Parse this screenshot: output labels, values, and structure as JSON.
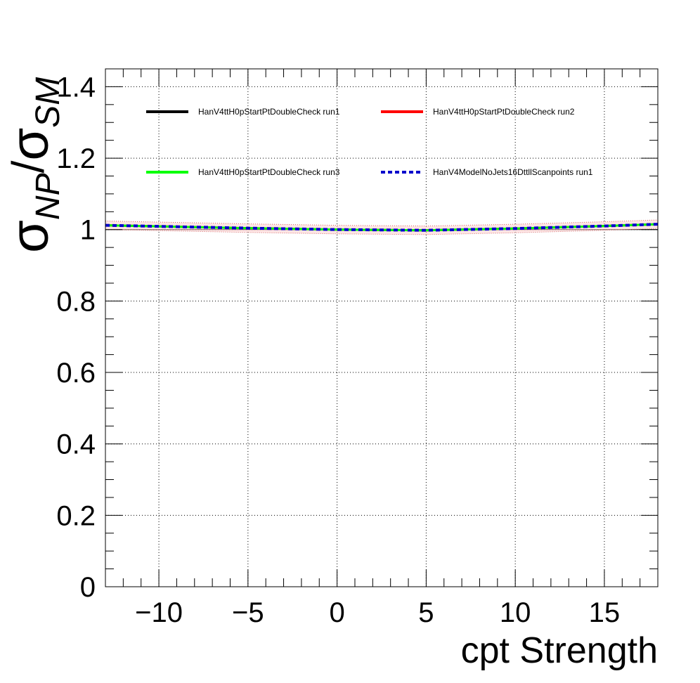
{
  "chart_data": {
    "type": "line",
    "xlabel": "cpt Strength",
    "ylabel": {
      "sigma": "σ",
      "sub_np": "NP",
      "sep": "/",
      "sub_sm": "SM"
    },
    "xlim": [
      -13,
      18
    ],
    "ylim": [
      0,
      1.45
    ],
    "x_ticks": [
      -10,
      -5,
      0,
      5,
      10,
      15
    ],
    "x_tick_labels": [
      "−10",
      "−5",
      "0",
      "5",
      "10",
      "15"
    ],
    "y_ticks": [
      0,
      0.2,
      0.4,
      0.6,
      0.8,
      1,
      1.2,
      1.4
    ],
    "y_tick_labels": [
      "0",
      "0.2",
      "0.4",
      "0.6",
      "0.8",
      "1",
      "1.2",
      "1.4"
    ],
    "grid": true,
    "reference_line": 1.0,
    "legend_position": "top",
    "x": [
      -13,
      -10,
      -5,
      0,
      5,
      10,
      15,
      18
    ],
    "series": [
      {
        "name": "HanV4ttH0pStartPtDoubleCheck run1",
        "color": "#000000",
        "style": "solid",
        "values": [
          1.012,
          1.009,
          1.004,
          1.0,
          0.998,
          1.003,
          1.01,
          1.015
        ]
      },
      {
        "name": "HanV4ttH0pStartPtDoubleCheck run2",
        "color": "#ff0000",
        "style": "solid",
        "values": [
          1.012,
          1.009,
          1.004,
          1.0,
          0.998,
          1.003,
          1.01,
          1.015
        ]
      },
      {
        "name": "HanV4ttH0pStartPtDoubleCheck run3",
        "color": "#00ff00",
        "style": "solid",
        "values": [
          1.012,
          1.009,
          1.004,
          1.0,
          0.998,
          1.003,
          1.01,
          1.015
        ]
      },
      {
        "name": "HanV4ModelNoJets16DttllScanpoints run1",
        "color": "#0000cc",
        "style": "dashed",
        "values": [
          1.012,
          1.009,
          1.004,
          1.0,
          0.998,
          1.003,
          1.01,
          1.015
        ]
      }
    ]
  }
}
